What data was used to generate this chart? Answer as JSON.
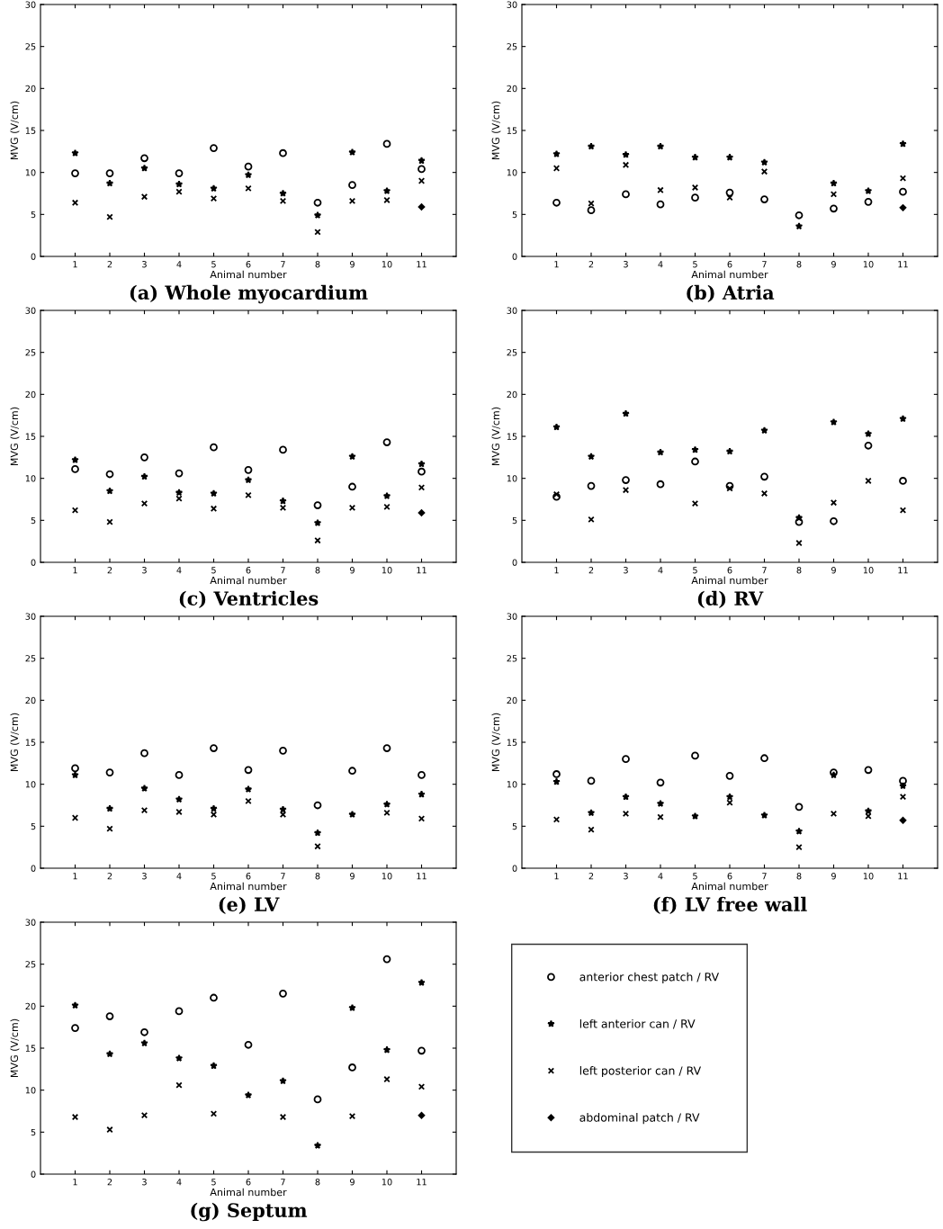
{
  "chart_data": [
    {
      "type": "scatter",
      "title": "(a) Whole myocardium",
      "xlabel": "Animal number",
      "ylabel": "MVG (V/cm)",
      "x": [
        1,
        2,
        3,
        4,
        5,
        6,
        7,
        8,
        9,
        10,
        11
      ],
      "xlim": [
        0,
        12
      ],
      "xticks": [
        1,
        2,
        3,
        4,
        5,
        6,
        7,
        8,
        9,
        10,
        11
      ],
      "ylim": [
        0,
        30
      ],
      "yticks": [
        0,
        5,
        10,
        15,
        20,
        25,
        30
      ],
      "series": [
        {
          "color": "#000000",
          "marker": "circle",
          "values": [
            9.9,
            9.9,
            11.7,
            9.9,
            12.9,
            10.7,
            12.3,
            6.4,
            8.5,
            13.4,
            10.4
          ]
        },
        {
          "color": "#000000",
          "marker": "star",
          "values": [
            12.3,
            8.7,
            10.5,
            8.6,
            8.1,
            9.7,
            7.5,
            4.9,
            12.4,
            7.8,
            11.4
          ]
        },
        {
          "color": "#000000",
          "marker": "cross",
          "values": [
            6.4,
            4.7,
            7.1,
            7.7,
            6.9,
            8.1,
            6.6,
            2.9,
            6.6,
            6.7,
            9.0
          ]
        },
        {
          "color": "#000000",
          "marker": "diamond",
          "values": [
            null,
            null,
            null,
            null,
            null,
            null,
            null,
            null,
            null,
            null,
            5.9
          ]
        }
      ]
    },
    {
      "type": "scatter",
      "title": "(b) Atria",
      "xlabel": "Animal number",
      "ylabel": "MVG (V/cm)",
      "x": [
        1,
        2,
        3,
        4,
        5,
        6,
        7,
        8,
        9,
        10,
        11
      ],
      "xlim": [
        0,
        12
      ],
      "xticks": [
        1,
        2,
        3,
        4,
        5,
        6,
        7,
        8,
        9,
        10,
        11
      ],
      "ylim": [
        0,
        30
      ],
      "yticks": [
        0,
        5,
        10,
        15,
        20,
        25,
        30
      ],
      "series": [
        {
          "color": "#000000",
          "marker": "circle",
          "values": [
            6.4,
            5.5,
            7.4,
            6.2,
            7.0,
            7.6,
            6.8,
            4.9,
            5.7,
            6.5,
            7.7
          ]
        },
        {
          "color": "#000000",
          "marker": "star",
          "values": [
            12.2,
            13.1,
            12.1,
            13.1,
            11.8,
            11.8,
            11.2,
            3.6,
            8.7,
            7.8,
            13.4
          ]
        },
        {
          "color": "#000000",
          "marker": "cross",
          "values": [
            10.5,
            6.3,
            10.9,
            7.9,
            8.2,
            7.0,
            10.1,
            null,
            7.4,
            null,
            9.3
          ]
        },
        {
          "color": "#000000",
          "marker": "diamond",
          "values": [
            null,
            null,
            null,
            null,
            null,
            null,
            null,
            null,
            null,
            null,
            5.8
          ]
        }
      ]
    },
    {
      "type": "scatter",
      "title": "(c) Ventricles",
      "xlabel": "Animal number",
      "ylabel": "MVG (V/cm)",
      "x": [
        1,
        2,
        3,
        4,
        5,
        6,
        7,
        8,
        9,
        10,
        11
      ],
      "xlim": [
        0,
        12
      ],
      "xticks": [
        1,
        2,
        3,
        4,
        5,
        6,
        7,
        8,
        9,
        10,
        11
      ],
      "ylim": [
        0,
        30
      ],
      "yticks": [
        0,
        5,
        10,
        15,
        20,
        25,
        30
      ],
      "series": [
        {
          "color": "#000000",
          "marker": "circle",
          "values": [
            11.1,
            10.5,
            12.5,
            10.6,
            13.7,
            11.0,
            13.4,
            6.8,
            9.0,
            14.3,
            10.8
          ]
        },
        {
          "color": "#000000",
          "marker": "star",
          "values": [
            12.2,
            8.5,
            10.2,
            8.3,
            8.2,
            9.8,
            7.3,
            4.7,
            12.6,
            7.9,
            11.7
          ]
        },
        {
          "color": "#000000",
          "marker": "cross",
          "values": [
            6.2,
            4.8,
            7.0,
            7.6,
            6.4,
            8.0,
            6.5,
            2.6,
            6.5,
            6.6,
            8.9
          ]
        },
        {
          "color": "#000000",
          "marker": "diamond",
          "values": [
            null,
            null,
            null,
            null,
            null,
            null,
            null,
            null,
            null,
            null,
            5.9
          ]
        }
      ]
    },
    {
      "type": "scatter",
      "title": "(d) RV",
      "xlabel": "Animal number",
      "ylabel": "MVG (V/cm)",
      "x": [
        1,
        2,
        3,
        4,
        5,
        6,
        7,
        8,
        9,
        10,
        11
      ],
      "xlim": [
        0,
        12
      ],
      "xticks": [
        1,
        2,
        3,
        4,
        5,
        6,
        7,
        8,
        9,
        10,
        11
      ],
      "ylim": [
        0,
        30
      ],
      "yticks": [
        0,
        5,
        10,
        15,
        20,
        25,
        30
      ],
      "series": [
        {
          "color": "#000000",
          "marker": "circle",
          "values": [
            7.8,
            9.1,
            9.8,
            9.3,
            12.0,
            9.1,
            10.2,
            4.8,
            4.9,
            13.9,
            9.7
          ]
        },
        {
          "color": "#000000",
          "marker": "star",
          "values": [
            16.1,
            12.6,
            17.7,
            13.1,
            13.4,
            13.2,
            15.7,
            5.3,
            16.7,
            15.3,
            17.1
          ]
        },
        {
          "color": "#000000",
          "marker": "cross",
          "values": [
            8.1,
            5.1,
            8.6,
            null,
            7.0,
            8.8,
            8.2,
            2.3,
            7.1,
            9.7,
            6.2
          ]
        }
      ]
    },
    {
      "type": "scatter",
      "title": "(e) LV",
      "xlabel": "Animal number",
      "ylabel": "MVG (V/cm)",
      "x": [
        1,
        2,
        3,
        4,
        5,
        6,
        7,
        8,
        9,
        10,
        11
      ],
      "xlim": [
        0,
        12
      ],
      "xticks": [
        1,
        2,
        3,
        4,
        5,
        6,
        7,
        8,
        9,
        10,
        11
      ],
      "ylim": [
        0,
        30
      ],
      "yticks": [
        0,
        5,
        10,
        15,
        20,
        25,
        30
      ],
      "series": [
        {
          "color": "#000000",
          "marker": "circle",
          "values": [
            11.9,
            11.4,
            13.7,
            11.1,
            14.3,
            11.7,
            14.0,
            7.5,
            11.6,
            14.3,
            11.1
          ]
        },
        {
          "color": "#000000",
          "marker": "star",
          "values": [
            11.1,
            7.1,
            9.5,
            8.2,
            7.1,
            9.4,
            7.0,
            4.2,
            6.4,
            7.6,
            8.8
          ]
        },
        {
          "color": "#000000",
          "marker": "cross",
          "values": [
            6.0,
            4.7,
            6.9,
            6.7,
            6.4,
            8.0,
            6.4,
            2.6,
            null,
            6.6,
            5.9
          ]
        }
      ]
    },
    {
      "type": "scatter",
      "title": "(f) LV free wall",
      "xlabel": "Animal number",
      "ylabel": "MVG (V/cm)",
      "x": [
        1,
        2,
        3,
        4,
        5,
        6,
        7,
        8,
        9,
        10,
        11
      ],
      "xlim": [
        0,
        12
      ],
      "xticks": [
        1,
        2,
        3,
        4,
        5,
        6,
        7,
        8,
        9,
        10,
        11
      ],
      "ylim": [
        0,
        30
      ],
      "yticks": [
        0,
        5,
        10,
        15,
        20,
        25,
        30
      ],
      "series": [
        {
          "color": "#000000",
          "marker": "circle",
          "values": [
            11.2,
            10.4,
            13.0,
            10.2,
            13.4,
            11.0,
            13.1,
            7.3,
            11.4,
            11.7,
            10.4
          ]
        },
        {
          "color": "#000000",
          "marker": "star",
          "values": [
            10.3,
            6.6,
            8.5,
            7.7,
            6.2,
            8.5,
            6.3,
            4.4,
            11.1,
            6.8,
            9.8
          ]
        },
        {
          "color": "#000000",
          "marker": "cross",
          "values": [
            5.8,
            4.6,
            6.5,
            6.1,
            null,
            7.8,
            null,
            2.5,
            6.5,
            6.2,
            8.5
          ]
        },
        {
          "color": "#000000",
          "marker": "diamond",
          "values": [
            null,
            null,
            null,
            null,
            null,
            null,
            null,
            null,
            null,
            null,
            5.7
          ]
        }
      ]
    },
    {
      "type": "scatter",
      "title": "(g) Septum",
      "xlabel": "Animal number",
      "ylabel": "MVG (V/cm)",
      "x": [
        1,
        2,
        3,
        4,
        5,
        6,
        7,
        8,
        9,
        10,
        11
      ],
      "xlim": [
        0,
        12
      ],
      "xticks": [
        1,
        2,
        3,
        4,
        5,
        6,
        7,
        8,
        9,
        10,
        11
      ],
      "ylim": [
        0,
        30
      ],
      "yticks": [
        0,
        5,
        10,
        15,
        20,
        25,
        30
      ],
      "legend": "right",
      "series": [
        {
          "name": "anterior chest patch / RV",
          "color": "#000000",
          "marker": "circle",
          "values": [
            17.4,
            18.8,
            16.9,
            19.4,
            21.0,
            15.4,
            21.5,
            8.9,
            12.7,
            25.6,
            14.7
          ]
        },
        {
          "name": "left anterior can / RV",
          "color": "#000000",
          "marker": "star",
          "values": [
            20.1,
            14.3,
            15.6,
            13.8,
            12.9,
            9.4,
            11.1,
            3.4,
            19.8,
            14.8,
            22.8
          ]
        },
        {
          "name": "left posterior can / RV",
          "color": "#000000",
          "marker": "cross",
          "values": [
            6.8,
            5.3,
            7.0,
            10.6,
            7.2,
            null,
            6.8,
            null,
            6.9,
            11.3,
            10.4
          ]
        },
        {
          "name": "abdominal patch / RV",
          "color": "#000000",
          "marker": "diamond",
          "values": [
            null,
            null,
            null,
            null,
            null,
            null,
            null,
            null,
            null,
            null,
            7.0
          ]
        }
      ]
    }
  ]
}
